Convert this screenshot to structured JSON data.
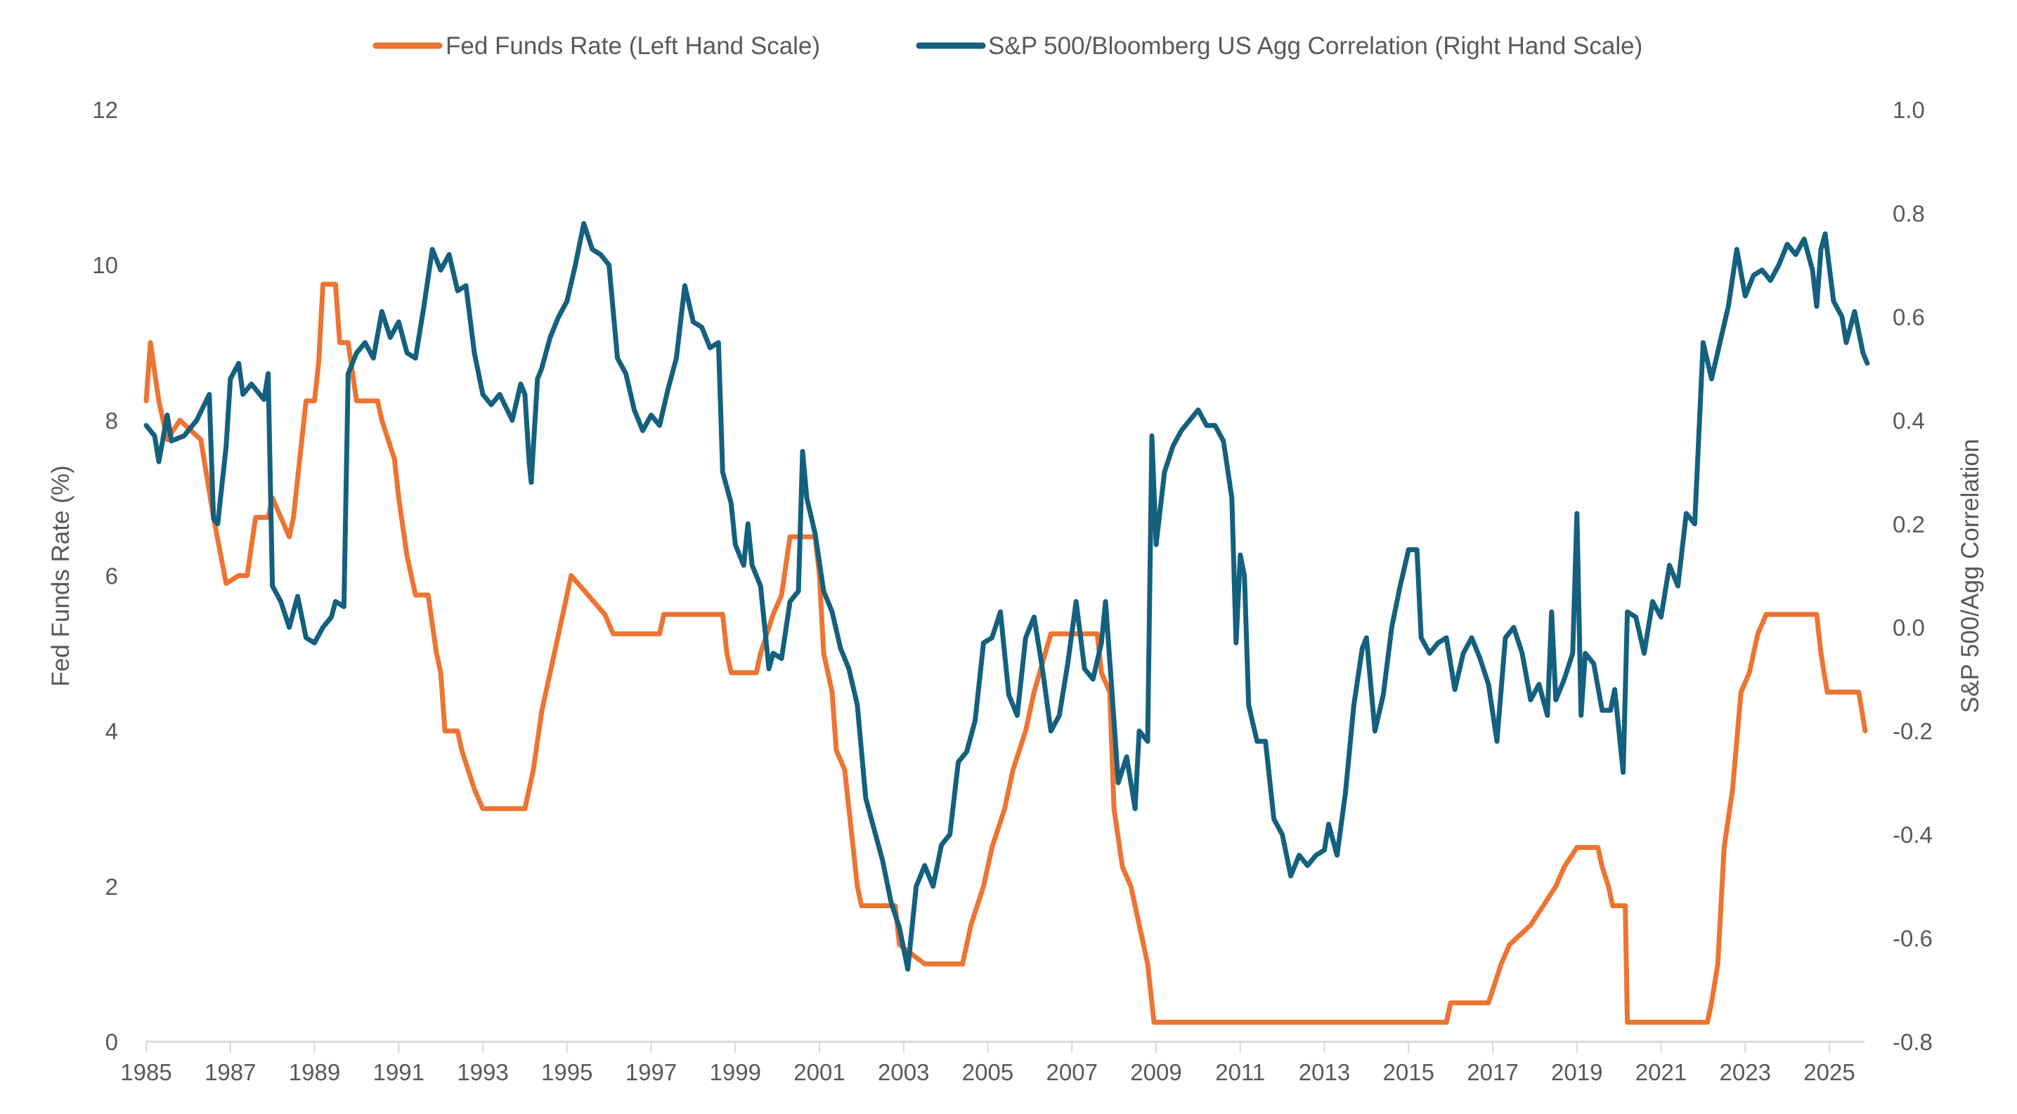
{
  "chart_data": {
    "type": "line",
    "title": "",
    "legend_position": "top",
    "grid": false,
    "x_ticks": [
      "1985",
      "1987",
      "1989",
      "1991",
      "1993",
      "1995",
      "1997",
      "1999",
      "2001",
      "2003",
      "2005",
      "2007",
      "2009",
      "2011",
      "2013",
      "2015",
      "2017",
      "2019",
      "2021",
      "2023",
      "2025"
    ],
    "xlim": [
      1985,
      2026
    ],
    "left_axis": {
      "label": "Fed Funds Rate (%)",
      "ylim": [
        0,
        12
      ],
      "ticks": [
        "0",
        "2",
        "4",
        "6",
        "8",
        "10",
        "12"
      ]
    },
    "right_axis": {
      "label": "S&P 500/Agg Correlation",
      "ylim": [
        -0.8,
        1.0
      ],
      "ticks": [
        "-0.8",
        "-0.6",
        "-0.4",
        "-0.2",
        "0.0",
        "0.2",
        "0.4",
        "0.6",
        "0.8",
        "1.0"
      ]
    },
    "series": [
      {
        "name": "Fed Funds Rate (Left Hand Scale)",
        "axis": "left",
        "color": "#ED7432",
        "x": [
          1985.0,
          1985.1,
          1985.3,
          1985.5,
          1985.8,
          1986.3,
          1986.6,
          1986.9,
          1987.2,
          1987.4,
          1987.6,
          1987.9,
          1988.0,
          1988.2,
          1988.4,
          1988.5,
          1988.6,
          1988.8,
          1989.0,
          1989.1,
          1989.2,
          1989.5,
          1989.6,
          1989.8,
          1990.0,
          1990.5,
          1990.6,
          1990.9,
          1991.0,
          1991.2,
          1991.4,
          1991.7,
          1991.9,
          1992.0,
          1992.1,
          1992.4,
          1992.5,
          1992.8,
          1993.0,
          1994.0,
          1994.2,
          1994.4,
          1994.6,
          1994.9,
          1995.1,
          1995.5,
          1995.9,
          1996.1,
          1997.2,
          1997.3,
          1998.7,
          1998.8,
          1998.9,
          1999.5,
          1999.6,
          1999.9,
          2000.1,
          2000.3,
          2000.9,
          2001.0,
          2001.1,
          2001.3,
          2001.4,
          2001.6,
          2001.8,
          2001.9,
          2002.0,
          2002.8,
          2002.9,
          2003.5,
          2004.4,
          2004.6,
          2004.9,
          2005.1,
          2005.4,
          2005.6,
          2005.9,
          2006.1,
          2006.5,
          2007.6,
          2007.7,
          2007.9,
          2008.0,
          2008.2,
          2008.4,
          2008.8,
          2008.95,
          2015.9,
          2016.0,
          2016.9,
          2017.2,
          2017.4,
          2017.9,
          2018.2,
          2018.5,
          2018.7,
          2019.0,
          2019.5,
          2019.6,
          2019.75,
          2019.85,
          2020.15,
          2020.2,
          2022.1,
          2022.2,
          2022.35,
          2022.5,
          2022.7,
          2022.9,
          2023.1,
          2023.3,
          2023.5,
          2024.7,
          2024.8,
          2024.95,
          2025.7,
          2025.85
        ],
        "values": [
          8.25,
          9.0,
          8.25,
          7.75,
          8.0,
          7.75,
          6.75,
          5.9,
          6.0,
          6.0,
          6.75,
          6.75,
          7.0,
          6.75,
          6.5,
          6.75,
          7.25,
          8.25,
          8.25,
          8.75,
          9.75,
          9.75,
          9.0,
          9.0,
          8.25,
          8.25,
          8.0,
          7.5,
          7.0,
          6.25,
          5.75,
          5.75,
          5.0,
          4.75,
          4.0,
          4.0,
          3.75,
          3.25,
          3.0,
          3.0,
          3.5,
          4.25,
          4.75,
          5.5,
          6.0,
          5.75,
          5.5,
          5.25,
          5.25,
          5.5,
          5.5,
          5.0,
          4.75,
          4.75,
          5.0,
          5.5,
          5.75,
          6.5,
          6.5,
          6.0,
          5.0,
          4.5,
          3.75,
          3.5,
          2.5,
          2.0,
          1.75,
          1.75,
          1.25,
          1.0,
          1.0,
          1.5,
          2.0,
          2.5,
          3.0,
          3.5,
          4.0,
          4.5,
          5.25,
          5.25,
          4.75,
          4.5,
          3.0,
          2.25,
          2.0,
          1.0,
          0.25,
          0.25,
          0.5,
          0.5,
          1.0,
          1.25,
          1.5,
          1.75,
          2.0,
          2.25,
          2.5,
          2.5,
          2.25,
          2.0,
          1.75,
          1.75,
          0.25,
          0.25,
          0.5,
          1.0,
          2.5,
          3.25,
          4.5,
          4.75,
          5.25,
          5.5,
          5.5,
          5.0,
          4.5,
          4.5,
          4.0
        ]
      },
      {
        "name": "S&P 500/Bloomberg US Agg Correlation (Right Hand Scale)",
        "axis": "right",
        "color": "#14607F",
        "x": [
          1985.0,
          1985.2,
          1985.3,
          1985.5,
          1985.6,
          1985.9,
          1986.2,
          1986.5,
          1986.6,
          1986.7,
          1986.9,
          1987.0,
          1987.2,
          1987.3,
          1987.5,
          1987.8,
          1987.9,
          1988.0,
          1988.2,
          1988.4,
          1988.6,
          1988.8,
          1989.0,
          1989.2,
          1989.4,
          1989.5,
          1989.7,
          1989.8,
          1990.0,
          1990.2,
          1990.4,
          1990.6,
          1990.8,
          1991.0,
          1991.2,
          1991.4,
          1991.6,
          1991.8,
          1992.0,
          1992.2,
          1992.4,
          1992.6,
          1992.8,
          1993.0,
          1993.2,
          1993.4,
          1993.7,
          1993.9,
          1994.0,
          1994.1,
          1994.15,
          1994.3,
          1994.4,
          1994.6,
          1994.8,
          1995.0,
          1995.2,
          1995.4,
          1995.6,
          1995.8,
          1996.0,
          1996.2,
          1996.4,
          1996.6,
          1996.8,
          1997.0,
          1997.2,
          1997.4,
          1997.6,
          1997.8,
          1998.0,
          1998.2,
          1998.4,
          1998.6,
          1998.7,
          1998.9,
          1999.0,
          1999.2,
          1999.3,
          1999.4,
          1999.6,
          1999.8,
          1999.9,
          2000.1,
          2000.3,
          2000.5,
          2000.6,
          2000.7,
          2000.9,
          2001.1,
          2001.3,
          2001.5,
          2001.7,
          2001.9,
          2002.1,
          2002.3,
          2002.5,
          2002.7,
          2002.9,
          2003.1,
          2003.3,
          2003.5,
          2003.7,
          2003.9,
          2004.1,
          2004.3,
          2004.5,
          2004.7,
          2004.9,
          2005.1,
          2005.3,
          2005.5,
          2005.7,
          2005.9,
          2006.1,
          2006.3,
          2006.5,
          2006.7,
          2006.9,
          2007.1,
          2007.3,
          2007.5,
          2007.7,
          2007.8,
          2008.0,
          2008.1,
          2008.3,
          2008.5,
          2008.6,
          2008.8,
          2008.9,
          2009.0,
          2009.2,
          2009.4,
          2009.6,
          2009.8,
          2010.0,
          2010.2,
          2010.4,
          2010.6,
          2010.8,
          2010.9,
          2011.0,
          2011.1,
          2011.2,
          2011.4,
          2011.6,
          2011.8,
          2012.0,
          2012.2,
          2012.4,
          2012.6,
          2012.8,
          2013.0,
          2013.1,
          2013.3,
          2013.5,
          2013.7,
          2013.9,
          2014.0,
          2014.2,
          2014.4,
          2014.6,
          2014.8,
          2015.0,
          2015.2,
          2015.3,
          2015.5,
          2015.7,
          2015.9,
          2016.1,
          2016.3,
          2016.5,
          2016.7,
          2016.9,
          2017.1,
          2017.3,
          2017.5,
          2017.7,
          2017.9,
          2018.1,
          2018.3,
          2018.4,
          2018.5,
          2018.7,
          2018.9,
          2019.0,
          2019.1,
          2019.2,
          2019.4,
          2019.6,
          2019.8,
          2019.9,
          2020.1,
          2020.2,
          2020.4,
          2020.6,
          2020.8,
          2021.0,
          2021.2,
          2021.4,
          2021.6,
          2021.8,
          2022.0,
          2022.2,
          2022.4,
          2022.6,
          2022.8,
          2023.0,
          2023.2,
          2023.4,
          2023.6,
          2023.8,
          2024.0,
          2024.2,
          2024.4,
          2024.6,
          2024.7,
          2024.8,
          2024.9,
          2025.1,
          2025.3,
          2025.4,
          2025.6,
          2025.8,
          2025.9
        ],
        "values": [
          0.39,
          0.37,
          0.32,
          0.41,
          0.36,
          0.37,
          0.4,
          0.45,
          0.21,
          0.2,
          0.35,
          0.48,
          0.51,
          0.45,
          0.47,
          0.44,
          0.49,
          0.08,
          0.05,
          0.0,
          0.06,
          -0.02,
          -0.03,
          0.0,
          0.02,
          0.05,
          0.04,
          0.49,
          0.53,
          0.55,
          0.52,
          0.61,
          0.56,
          0.59,
          0.53,
          0.52,
          0.62,
          0.73,
          0.69,
          0.72,
          0.65,
          0.66,
          0.53,
          0.45,
          0.43,
          0.45,
          0.4,
          0.47,
          0.45,
          0.32,
          0.28,
          0.48,
          0.5,
          0.56,
          0.6,
          0.63,
          0.7,
          0.78,
          0.73,
          0.72,
          0.7,
          0.52,
          0.49,
          0.42,
          0.38,
          0.41,
          0.39,
          0.46,
          0.52,
          0.66,
          0.59,
          0.58,
          0.54,
          0.55,
          0.3,
          0.24,
          0.16,
          0.12,
          0.2,
          0.12,
          0.08,
          -0.08,
          -0.05,
          -0.06,
          0.05,
          0.07,
          0.34,
          0.25,
          0.18,
          0.07,
          0.03,
          -0.04,
          -0.08,
          -0.15,
          -0.33,
          -0.39,
          -0.45,
          -0.53,
          -0.58,
          -0.66,
          -0.5,
          -0.46,
          -0.5,
          -0.42,
          -0.4,
          -0.26,
          -0.24,
          -0.18,
          -0.03,
          -0.02,
          0.03,
          -0.13,
          -0.17,
          -0.02,
          0.02,
          -0.08,
          -0.2,
          -0.17,
          -0.07,
          0.05,
          -0.08,
          -0.1,
          -0.03,
          0.05,
          -0.18,
          -0.3,
          -0.25,
          -0.35,
          -0.2,
          -0.22,
          0.37,
          0.16,
          0.3,
          0.35,
          0.38,
          0.4,
          0.42,
          0.39,
          0.39,
          0.36,
          0.25,
          -0.03,
          0.14,
          0.1,
          -0.15,
          -0.22,
          -0.22,
          -0.37,
          -0.4,
          -0.48,
          -0.44,
          -0.46,
          -0.44,
          -0.43,
          -0.38,
          -0.44,
          -0.32,
          -0.15,
          -0.04,
          -0.02,
          -0.2,
          -0.13,
          0.0,
          0.08,
          0.15,
          0.15,
          -0.02,
          -0.05,
          -0.03,
          -0.02,
          -0.12,
          -0.05,
          -0.02,
          -0.06,
          -0.11,
          -0.22,
          -0.02,
          0.0,
          -0.05,
          -0.14,
          -0.11,
          -0.17,
          0.03,
          -0.14,
          -0.1,
          -0.05,
          0.22,
          -0.17,
          -0.05,
          -0.07,
          -0.16,
          -0.16,
          -0.12,
          -0.28,
          0.03,
          0.02,
          -0.05,
          0.05,
          0.02,
          0.12,
          0.08,
          0.22,
          0.2,
          0.55,
          0.48,
          0.55,
          0.62,
          0.73,
          0.64,
          0.68,
          0.69,
          0.67,
          0.7,
          0.74,
          0.72,
          0.75,
          0.69,
          0.62,
          0.73,
          0.76,
          0.63,
          0.6,
          0.55,
          0.61,
          0.53,
          0.51
        ]
      }
    ]
  }
}
